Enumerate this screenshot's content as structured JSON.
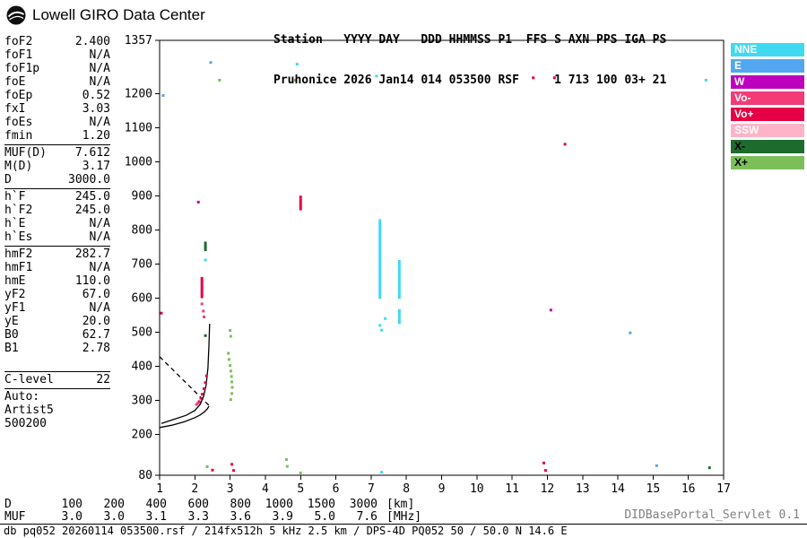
{
  "header": {
    "logo_text": "Lowell GIRO Data Center",
    "line1": "Station   YYYY DAY   DDD HHMMSS P1  FFS S AXN PPS IGA PS",
    "line2": "Pruhonice 2026 Jan14 014 053500 RSF     1 713 100 03+ 21"
  },
  "params": {
    "groups": [
      {
        "top_line": false,
        "bottom_line": false,
        "gap_before": false,
        "rows": [
          [
            "foF2",
            "2.400"
          ],
          [
            "foF1",
            "N/A"
          ],
          [
            "foF1p",
            "N/A"
          ],
          [
            "foE",
            "N/A"
          ],
          [
            "foEp",
            "0.52"
          ],
          [
            "fxI",
            "3.03"
          ],
          [
            "foEs",
            "N/A"
          ],
          [
            "fmin",
            "1.20"
          ]
        ]
      },
      {
        "top_line": true,
        "bottom_line": false,
        "gap_before": false,
        "rows": [
          [
            "MUF(D)",
            "7.612"
          ],
          [
            "M(D)",
            "3.17"
          ],
          [
            "D",
            "3000.0"
          ]
        ]
      },
      {
        "top_line": true,
        "bottom_line": false,
        "gap_before": false,
        "rows": [
          [
            "h`F",
            "245.0"
          ],
          [
            "h`F2",
            "245.0"
          ],
          [
            "h`E",
            "N/A"
          ],
          [
            "h`Es",
            "N/A"
          ]
        ]
      },
      {
        "top_line": true,
        "bottom_line": false,
        "gap_before": false,
        "rows": [
          [
            "hmF2",
            "282.7"
          ],
          [
            "hmF1",
            "N/A"
          ],
          [
            "hmE",
            "110.0"
          ],
          [
            "yF2",
            "67.0"
          ],
          [
            "yF1",
            "N/A"
          ],
          [
            "yE",
            "20.0"
          ],
          [
            "B0",
            "62.7"
          ],
          [
            "B1",
            "2.78"
          ]
        ]
      },
      {
        "top_line": true,
        "bottom_line": true,
        "gap_before": true,
        "rows": [
          [
            "C-level",
            "22"
          ]
        ]
      },
      {
        "top_line": false,
        "bottom_line": false,
        "gap_before": false,
        "rows": [
          [
            "Auto:",
            ""
          ],
          [
            "Artist5",
            ""
          ],
          [
            "500200",
            ""
          ]
        ]
      }
    ]
  },
  "chart_data": {
    "type": "scatter",
    "title": "Pruhonice ionogram 2026 Jan14 014 053500",
    "x_axis": {
      "label": "[MHz]",
      "min": 1,
      "max": 17,
      "ticks": [
        1,
        2,
        3,
        4,
        5,
        6,
        7,
        8,
        9,
        10,
        11,
        12,
        13,
        14,
        15,
        16,
        17
      ]
    },
    "y_axis": {
      "label": "[km]",
      "min": 80,
      "max": 1357,
      "ticks": [
        1357,
        1200,
        1100,
        1000,
        900,
        800,
        700,
        600,
        500,
        400,
        300,
        200,
        80
      ]
    },
    "legend": [
      {
        "label": "NNE",
        "color": "#3fd9f2",
        "text": "#ffffff"
      },
      {
        "label": "E",
        "color": "#52a7f0",
        "text": "#ffffff"
      },
      {
        "label": "W",
        "color": "#bd00bd",
        "text": "#ffffff"
      },
      {
        "label": "Vo-",
        "color": "#f23c78",
        "text": "#ffffff"
      },
      {
        "label": "Vo+",
        "color": "#e60045",
        "text": "#ffffff"
      },
      {
        "label": "SSW",
        "color": "#ffb3c8",
        "text": "#ffffff"
      },
      {
        "label": "X-",
        "color": "#1e6b2e",
        "text": "#000000"
      },
      {
        "label": "X+",
        "color": "#7cbf5a",
        "text": "#000000"
      }
    ],
    "points": [
      [
        2.45,
        1292,
        "E"
      ],
      [
        2.7,
        1240,
        "X+"
      ],
      [
        4.85,
        1240,
        "X+"
      ],
      [
        4.9,
        1287,
        "NNE"
      ],
      [
        7.15,
        1252,
        "NNE"
      ],
      [
        11.6,
        1247,
        "Vo+"
      ],
      [
        12.2,
        1247,
        "Vo+"
      ],
      [
        16.5,
        1240,
        "NNE"
      ],
      [
        12.5,
        1052,
        "Vo+"
      ],
      [
        2.1,
        882,
        "W"
      ],
      [
        1.1,
        1195,
        "E"
      ],
      [
        5.0,
        897,
        "Vo+"
      ],
      [
        2.3,
        712,
        "NNE"
      ],
      [
        12.1,
        565,
        "W"
      ],
      [
        14.35,
        498,
        "E"
      ],
      [
        1.05,
        556,
        "Vo+"
      ],
      [
        7.25,
        520,
        "NNE"
      ],
      [
        7.3,
        506,
        "NNE"
      ],
      [
        7.4,
        540,
        "NNE"
      ],
      [
        2.2,
        583,
        "Vo-"
      ],
      [
        2.24,
        562,
        "Vo-"
      ],
      [
        2.26,
        545,
        "Vo-"
      ],
      [
        2.3,
        490,
        "X-"
      ],
      [
        2.12,
        296,
        "Vo+"
      ],
      [
        2.17,
        306,
        "Vo+"
      ],
      [
        2.21,
        318,
        "Vo+"
      ],
      [
        2.26,
        334,
        "Vo+"
      ],
      [
        2.3,
        352,
        "Vo+"
      ],
      [
        2.33,
        372,
        "Vo+"
      ],
      [
        2.05,
        288,
        "Vo-"
      ],
      [
        2.09,
        292,
        "Vo-"
      ],
      [
        2.95,
        438,
        "X+"
      ],
      [
        2.97,
        420,
        "X+"
      ],
      [
        3.0,
        402,
        "X+"
      ],
      [
        3.02,
        386,
        "X+"
      ],
      [
        3.04,
        370,
        "X+"
      ],
      [
        3.05,
        354,
        "X+"
      ],
      [
        3.06,
        338,
        "X+"
      ],
      [
        3.05,
        320,
        "X+"
      ],
      [
        3.02,
        302,
        "X+"
      ],
      [
        3.0,
        505,
        "X+"
      ],
      [
        3.02,
        488,
        "X+"
      ],
      [
        2.35,
        105,
        "X+"
      ],
      [
        2.5,
        95,
        "Vo+"
      ],
      [
        3.05,
        112,
        "Vo+"
      ],
      [
        3.1,
        94,
        "Vo+"
      ],
      [
        4.6,
        126,
        "X+"
      ],
      [
        4.62,
        106,
        "X+"
      ],
      [
        5.0,
        87,
        "X+"
      ],
      [
        7.3,
        89,
        "NNE"
      ],
      [
        11.9,
        116,
        "Vo+"
      ],
      [
        11.95,
        94,
        "Vo+"
      ],
      [
        15.1,
        108,
        "E"
      ],
      [
        16.6,
        102,
        "X-"
      ]
    ],
    "segments": [
      {
        "x": 7.25,
        "h1": 598,
        "h2": 832,
        "key": "NNE"
      },
      {
        "x": 7.8,
        "h1": 598,
        "h2": 712,
        "key": "NNE"
      },
      {
        "x": 7.8,
        "h1": 524,
        "h2": 568,
        "key": "NNE"
      },
      {
        "x": 2.2,
        "h1": 600,
        "h2": 662,
        "key": "Vo+"
      },
      {
        "x": 5.0,
        "h1": 858,
        "h2": 893,
        "key": "Vo+"
      },
      {
        "x": 2.3,
        "h1": 738,
        "h2": 766,
        "key": "X-"
      }
    ],
    "curves": [
      {
        "name": "artist-trace",
        "style": "solid",
        "points": [
          [
            1.05,
            232
          ],
          [
            1.4,
            244
          ],
          [
            1.75,
            256
          ],
          [
            2.0,
            270
          ],
          [
            2.15,
            288
          ],
          [
            2.25,
            312
          ],
          [
            2.32,
            345
          ],
          [
            2.37,
            395
          ],
          [
            2.4,
            460
          ],
          [
            2.42,
            525
          ]
        ]
      },
      {
        "name": "true-height-profile",
        "style": "solid",
        "points": [
          [
            1.0,
            220
          ],
          [
            1.35,
            227
          ],
          [
            1.7,
            237
          ],
          [
            2.0,
            249
          ],
          [
            2.15,
            257
          ],
          [
            2.28,
            267
          ],
          [
            2.36,
            276
          ],
          [
            2.4,
            283
          ]
        ]
      },
      {
        "name": "extrapolated-profile",
        "style": "dashed",
        "points": [
          [
            1.0,
            428
          ],
          [
            2.4,
            285
          ]
        ]
      }
    ],
    "muf_table": {
      "d_label": "D",
      "muf_label": "MUF",
      "distances": [
        "100",
        "200",
        "400",
        "600",
        "800",
        "1000",
        "1500",
        "3000"
      ],
      "muf_values": [
        "3.0",
        "3.0",
        "3.1",
        "3.3",
        "3.6",
        "3.9",
        "5.0",
        "7.6"
      ],
      "d_unit": "[km]",
      "muf_unit": "[MHz]"
    }
  },
  "footer": {
    "servlet": "DIDBasePortal_Servlet 0.1",
    "status": "db pq052 20260114 053500.rsf / 214fx512h 5 kHz 2.5 km / DPS-4D PQ052 50 / 50.0 N 14.6 E"
  }
}
